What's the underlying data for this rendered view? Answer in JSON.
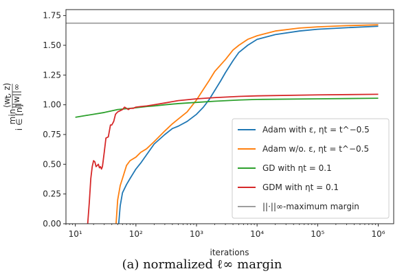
{
  "chart_data": {
    "type": "line",
    "xscale": "log",
    "xlim": [
      7,
      1800000
    ],
    "ylim": [
      0,
      1.8
    ],
    "xlabel": "iterations",
    "ylabel": "min_{i∈[n]} ⟨w_t, z_i⟩ / ||w_t||∞",
    "xticks": [
      10,
      100,
      1000,
      10000,
      100000,
      1000000
    ],
    "xtick_labels": [
      "10¹",
      "10²",
      "10³",
      "10⁴",
      "10⁵",
      "10⁶"
    ],
    "yticks": [
      0.0,
      0.25,
      0.5,
      0.75,
      1.0,
      1.25,
      1.5,
      1.75
    ],
    "ytick_labels": [
      "0.00",
      "0.25",
      "0.50",
      "0.75",
      "1.00",
      "1.25",
      "1.50",
      "1.75"
    ],
    "legend_position": "lower-right",
    "series": [
      {
        "name": "Adam with ε, ηt = t^−0.5",
        "color": "#1f77b4",
        "x": [
          52,
          55,
          60,
          70,
          80,
          100,
          120,
          150,
          200,
          300,
          400,
          500,
          700,
          1000,
          1300,
          1600,
          2000,
          2500,
          3000,
          4000,
          5000,
          7000,
          10000,
          20000,
          50000,
          100000,
          300000,
          1000000
        ],
        "y": [
          0.0,
          0.15,
          0.26,
          0.33,
          0.38,
          0.46,
          0.51,
          0.58,
          0.67,
          0.75,
          0.8,
          0.82,
          0.86,
          0.92,
          0.98,
          1.04,
          1.12,
          1.2,
          1.27,
          1.37,
          1.44,
          1.5,
          1.55,
          1.59,
          1.62,
          1.635,
          1.648,
          1.66
        ]
      },
      {
        "name": "Adam w/o. ε, ηt = t^−0.5",
        "color": "#ff7f0e",
        "x": [
          47,
          50,
          55,
          60,
          70,
          80,
          100,
          120,
          150,
          200,
          300,
          400,
          500,
          700,
          1000,
          1300,
          1600,
          2000,
          3000,
          4000,
          5000,
          7000,
          10000,
          20000,
          50000,
          100000,
          300000,
          1000000
        ],
        "y": [
          0.0,
          0.2,
          0.32,
          0.38,
          0.49,
          0.53,
          0.56,
          0.6,
          0.63,
          0.69,
          0.78,
          0.84,
          0.88,
          0.94,
          1.04,
          1.13,
          1.2,
          1.28,
          1.38,
          1.46,
          1.5,
          1.55,
          1.58,
          1.62,
          1.645,
          1.655,
          1.665,
          1.672
        ]
      },
      {
        "name": "GD with ηt = 0.1",
        "color": "#2ca02c",
        "x": [
          10,
          15,
          20,
          30,
          50,
          80,
          100,
          150,
          200,
          300,
          500,
          1000,
          2000,
          5000,
          10000,
          100000,
          1000000
        ],
        "y": [
          0.895,
          0.91,
          0.92,
          0.935,
          0.96,
          0.97,
          0.975,
          0.985,
          0.99,
          1.0,
          1.01,
          1.02,
          1.03,
          1.04,
          1.045,
          1.05,
          1.055
        ]
      },
      {
        "name": "GDM with ηt = 0.1",
        "color": "#d62728",
        "x": [
          16,
          17,
          18,
          19,
          20,
          21,
          22,
          23,
          24,
          25,
          26,
          27,
          28,
          30,
          32,
          35,
          38,
          40,
          43,
          46,
          50,
          55,
          60,
          65,
          70,
          75,
          80,
          90,
          100,
          120,
          150,
          200,
          300,
          500,
          1000,
          2000,
          5000,
          10000,
          100000,
          1000000
        ],
        "y": [
          0.0,
          0.18,
          0.38,
          0.48,
          0.53,
          0.52,
          0.48,
          0.49,
          0.5,
          0.47,
          0.48,
          0.46,
          0.48,
          0.6,
          0.72,
          0.73,
          0.83,
          0.83,
          0.86,
          0.92,
          0.94,
          0.95,
          0.96,
          0.98,
          0.97,
          0.96,
          0.97,
          0.97,
          0.98,
          0.985,
          0.99,
          1.0,
          1.015,
          1.035,
          1.05,
          1.06,
          1.07,
          1.075,
          1.083,
          1.088
        ]
      },
      {
        "name": "||·||∞-maximum margin",
        "color": "#9e9e9e",
        "x": [
          7,
          1800000
        ],
        "y": [
          1.686,
          1.686
        ]
      }
    ]
  },
  "caption": "(a) normalized ℓ∞ margin"
}
